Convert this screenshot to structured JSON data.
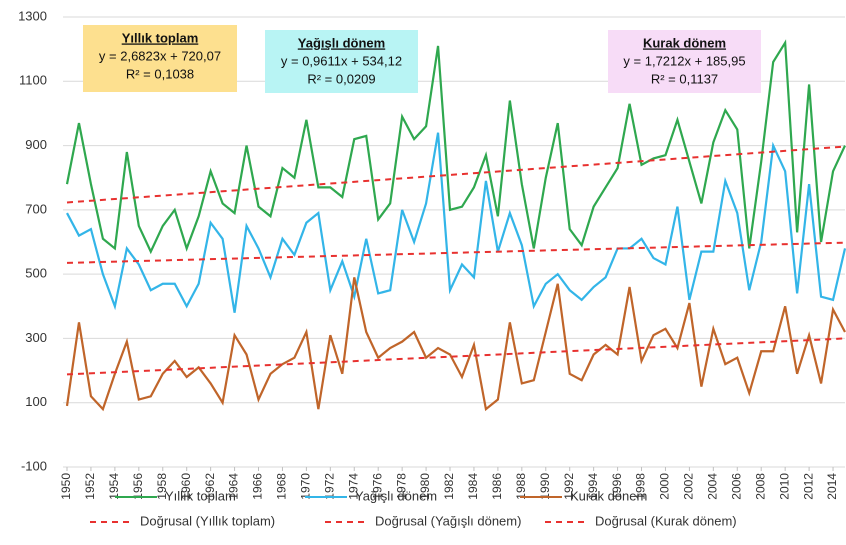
{
  "chart_data": {
    "type": "line",
    "x": [
      1950,
      1951,
      1952,
      1953,
      1954,
      1955,
      1956,
      1957,
      1958,
      1959,
      1960,
      1961,
      1962,
      1963,
      1964,
      1965,
      1966,
      1967,
      1968,
      1969,
      1970,
      1971,
      1972,
      1973,
      1974,
      1975,
      1976,
      1977,
      1978,
      1979,
      1980,
      1981,
      1982,
      1983,
      1984,
      1985,
      1986,
      1987,
      1988,
      1989,
      1990,
      1991,
      1992,
      1993,
      1994,
      1995,
      1996,
      1997,
      1998,
      1999,
      2000,
      2001,
      2002,
      2003,
      2004,
      2005,
      2006,
      2007,
      2008,
      2009,
      2010,
      2011,
      2012,
      2013,
      2014,
      2015
    ],
    "xlim": [
      1950,
      2015
    ],
    "xticks": [
      1950,
      1952,
      1954,
      1956,
      1958,
      1960,
      1962,
      1964,
      1966,
      1968,
      1970,
      1972,
      1974,
      1976,
      1978,
      1980,
      1982,
      1984,
      1986,
      1988,
      1990,
      1992,
      1994,
      1996,
      1998,
      2000,
      2002,
      2004,
      2006,
      2008,
      2010,
      2012,
      2014
    ],
    "ylim": [
      -100,
      1300
    ],
    "yticks": [
      -100,
      100,
      300,
      500,
      700,
      900,
      1100,
      1300
    ],
    "grid": true,
    "series": [
      {
        "name": "Yıllık toplam",
        "color": "#2fa84f",
        "values": [
          780,
          970,
          780,
          610,
          580,
          880,
          650,
          570,
          650,
          700,
          580,
          680,
          820,
          720,
          690,
          900,
          710,
          680,
          830,
          800,
          980,
          770,
          770,
          740,
          920,
          930,
          670,
          720,
          990,
          920,
          960,
          1210,
          700,
          710,
          770,
          870,
          680,
          1040,
          780,
          580,
          800,
          970,
          640,
          590,
          710,
          770,
          830,
          1030,
          840,
          860,
          870,
          980,
          850,
          720,
          910,
          1010,
          950,
          580,
          850,
          1160,
          1220,
          630,
          1090,
          600,
          820,
          900
        ]
      },
      {
        "name": "Yağışlı dönem",
        "color": "#33b5e8",
        "values": [
          690,
          620,
          640,
          500,
          400,
          580,
          530,
          450,
          470,
          470,
          400,
          470,
          660,
          610,
          380,
          650,
          580,
          490,
          610,
          560,
          660,
          690,
          450,
          540,
          430,
          610,
          440,
          450,
          700,
          600,
          720,
          940,
          450,
          530,
          490,
          790,
          570,
          690,
          590,
          400,
          470,
          500,
          450,
          420,
          460,
          490,
          580,
          580,
          610,
          550,
          530,
          710,
          420,
          570,
          570,
          790,
          690,
          450,
          600,
          900,
          820,
          440,
          780,
          430,
          420,
          580
        ]
      },
      {
        "name": "Kurak dönem",
        "color": "#c0652a",
        "values": [
          90,
          350,
          120,
          80,
          190,
          290,
          110,
          120,
          190,
          230,
          180,
          210,
          160,
          100,
          310,
          250,
          110,
          190,
          220,
          240,
          320,
          80,
          310,
          190,
          490,
          320,
          240,
          270,
          290,
          320,
          240,
          270,
          250,
          180,
          280,
          80,
          110,
          350,
          160,
          170,
          320,
          470,
          190,
          170,
          250,
          280,
          250,
          460,
          230,
          310,
          330,
          270,
          410,
          150,
          330,
          220,
          240,
          130,
          260,
          260,
          400,
          190,
          310,
          160,
          390,
          320
        ]
      },
      {
        "name": "Doğrusal (Yıllık toplam)",
        "color": "#e8312f",
        "dashed": true,
        "x": [
          1950,
          2015
        ],
        "values": [
          723,
          897
        ]
      },
      {
        "name": "Doğrusal (Yağışlı dönem)",
        "color": "#e8312f",
        "dashed": true,
        "x": [
          1950,
          2015
        ],
        "values": [
          535,
          598
        ]
      },
      {
        "name": "Doğrusal (Kurak dönem)",
        "color": "#e8312f",
        "dashed": true,
        "x": [
          1950,
          2015
        ],
        "values": [
          188,
          300
        ]
      }
    ],
    "annotations": [
      {
        "title": "Yıllık toplam",
        "equation": "y = 2,6823x + 720,07",
        "r2": "R² = 0,1038",
        "background": "#fde08f"
      },
      {
        "title": "Yağışlı dönem",
        "equation": "y = 0,9611x + 534,12",
        "r2": "R² = 0,0209",
        "background": "#b8f4f4"
      },
      {
        "title": "Kurak dönem",
        "equation": "y = 1,7212x + 185,95",
        "r2": "R² = 0,1137",
        "background": "#f7dcf7"
      }
    ]
  }
}
